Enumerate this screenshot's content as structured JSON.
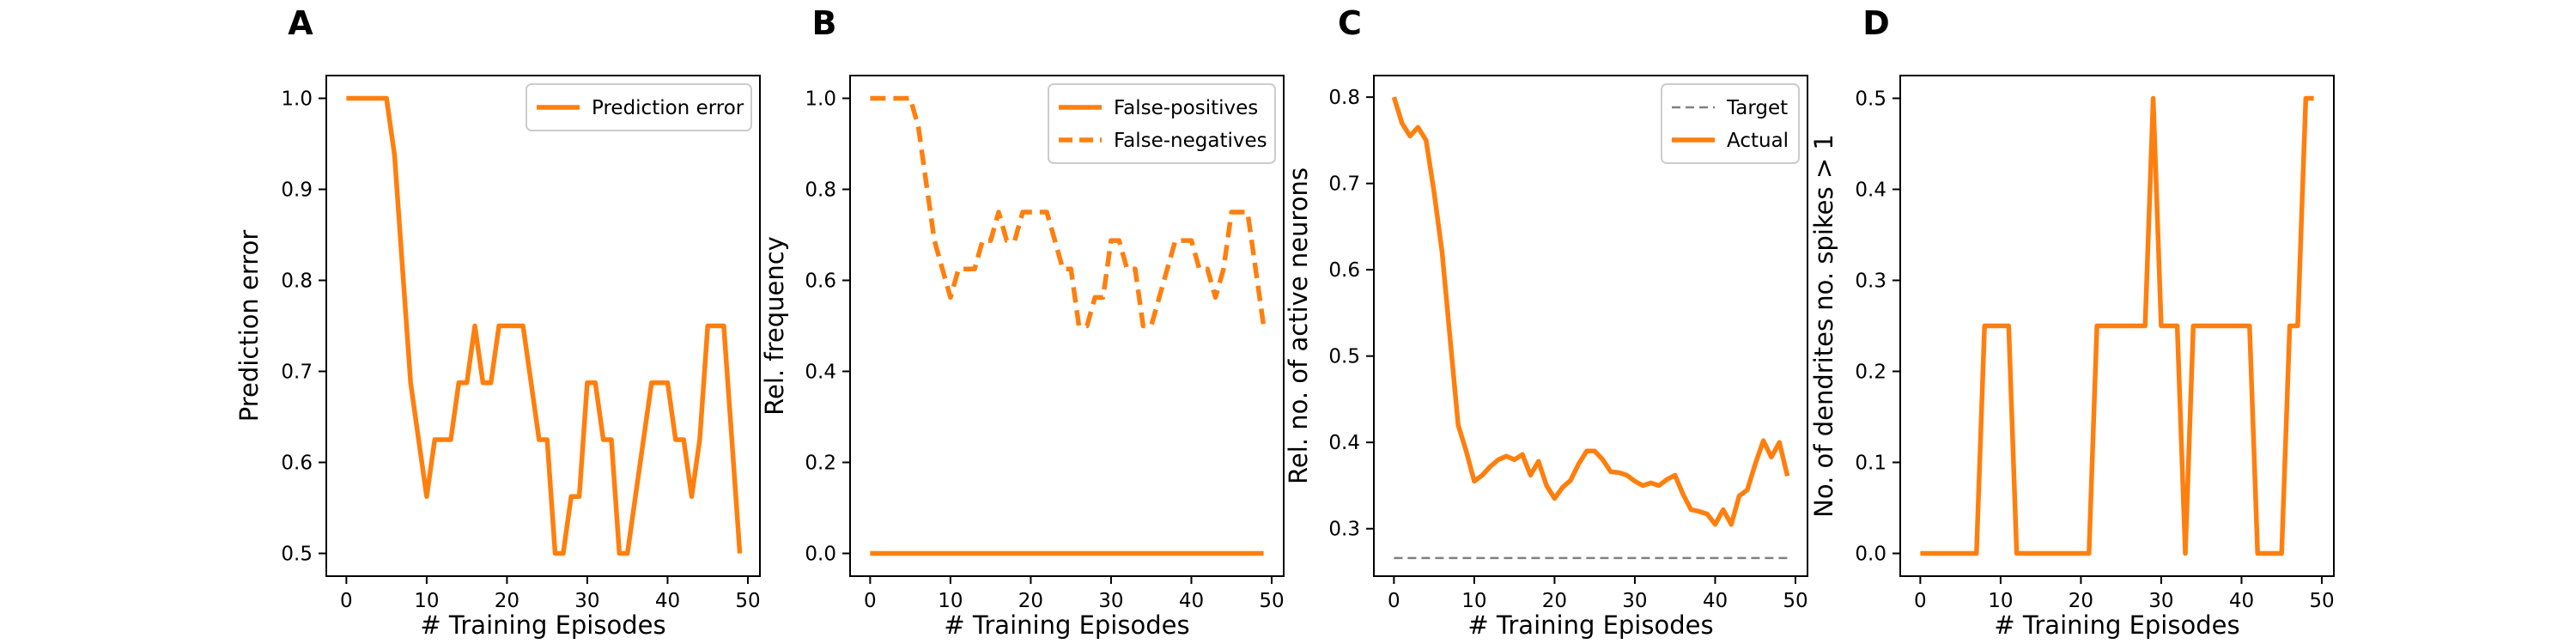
{
  "chart_data": [
    {
      "type": "line",
      "panel_label": "A",
      "xlabel": "# Training Episodes",
      "ylabel": "Prediction error",
      "xlim": [
        -2.5,
        51.5
      ],
      "ylim": [
        0.475,
        1.025
      ],
      "xticks": [
        0,
        10,
        20,
        30,
        40,
        50
      ],
      "yticks": [
        0.5,
        0.6,
        0.7,
        0.8,
        0.9,
        1.0
      ],
      "ytick_labels": [
        "0.5",
        "0.6",
        "0.7",
        "0.8",
        "0.9",
        "1.0"
      ],
      "legend": "top-right",
      "color": "#ff7f0e",
      "x": [
        0,
        1,
        2,
        3,
        4,
        5,
        6,
        7,
        8,
        9,
        10,
        11,
        12,
        13,
        14,
        15,
        16,
        17,
        18,
        19,
        20,
        21,
        22,
        23,
        24,
        25,
        26,
        27,
        28,
        29,
        30,
        31,
        32,
        33,
        34,
        35,
        36,
        37,
        38,
        39,
        40,
        41,
        42,
        43,
        44,
        45,
        46,
        47,
        48,
        49
      ],
      "series": [
        {
          "name": "Prediction error",
          "style": "solid",
          "values": [
            1.0,
            1.0,
            1.0,
            1.0,
            1.0,
            1.0,
            0.9375,
            0.8125,
            0.6875,
            0.625,
            0.5625,
            0.625,
            0.625,
            0.625,
            0.6875,
            0.6875,
            0.75,
            0.6875,
            0.6875,
            0.75,
            0.75,
            0.75,
            0.75,
            0.6875,
            0.625,
            0.625,
            0.5,
            0.5,
            0.5625,
            0.5625,
            0.6875,
            0.6875,
            0.625,
            0.625,
            0.5,
            0.5,
            0.5625,
            0.625,
            0.6875,
            0.6875,
            0.6875,
            0.625,
            0.625,
            0.5625,
            0.625,
            0.75,
            0.75,
            0.75,
            0.625,
            0.5
          ]
        }
      ]
    },
    {
      "type": "line",
      "panel_label": "B",
      "xlabel": "# Training Episodes",
      "ylabel": "Rel. frequency",
      "xlim": [
        -2.5,
        51.5
      ],
      "ylim": [
        -0.05,
        1.05
      ],
      "xticks": [
        0,
        10,
        20,
        30,
        40,
        50
      ],
      "yticks": [
        0.0,
        0.2,
        0.4,
        0.6,
        0.8,
        1.0
      ],
      "ytick_labels": [
        "0.0",
        "0.2",
        "0.4",
        "0.6",
        "0.8",
        "1.0"
      ],
      "legend": "top-right",
      "color": "#ff7f0e",
      "x": [
        0,
        1,
        2,
        3,
        4,
        5,
        6,
        7,
        8,
        9,
        10,
        11,
        12,
        13,
        14,
        15,
        16,
        17,
        18,
        19,
        20,
        21,
        22,
        23,
        24,
        25,
        26,
        27,
        28,
        29,
        30,
        31,
        32,
        33,
        34,
        35,
        36,
        37,
        38,
        39,
        40,
        41,
        42,
        43,
        44,
        45,
        46,
        47,
        48,
        49
      ],
      "series": [
        {
          "name": "False-positives",
          "style": "solid",
          "values": [
            0,
            0,
            0,
            0,
            0,
            0,
            0,
            0,
            0,
            0,
            0,
            0,
            0,
            0,
            0,
            0,
            0,
            0,
            0,
            0,
            0,
            0,
            0,
            0,
            0,
            0,
            0,
            0,
            0,
            0,
            0,
            0,
            0,
            0,
            0,
            0,
            0,
            0,
            0,
            0,
            0,
            0,
            0,
            0,
            0,
            0,
            0,
            0,
            0,
            0
          ]
        },
        {
          "name": "False-negatives",
          "style": "dashed",
          "values": [
            1.0,
            1.0,
            1.0,
            1.0,
            1.0,
            1.0,
            0.9375,
            0.8125,
            0.6875,
            0.625,
            0.5625,
            0.625,
            0.625,
            0.625,
            0.6875,
            0.6875,
            0.75,
            0.6875,
            0.6875,
            0.75,
            0.75,
            0.75,
            0.75,
            0.6875,
            0.625,
            0.625,
            0.5,
            0.5,
            0.5625,
            0.5625,
            0.6875,
            0.6875,
            0.625,
            0.625,
            0.5,
            0.5,
            0.5625,
            0.625,
            0.6875,
            0.6875,
            0.6875,
            0.625,
            0.625,
            0.5625,
            0.625,
            0.75,
            0.75,
            0.75,
            0.625,
            0.5
          ]
        }
      ]
    },
    {
      "type": "line",
      "panel_label": "C",
      "xlabel": "# Training Episodes",
      "ylabel": "Rel. no. of active neurons",
      "xlim": [
        -2.5,
        51.5
      ],
      "ylim": [
        0.245,
        0.825
      ],
      "xticks": [
        0,
        10,
        20,
        30,
        40,
        50
      ],
      "yticks": [
        0.3,
        0.4,
        0.5,
        0.6,
        0.7,
        0.8
      ],
      "ytick_labels": [
        "0.3",
        "0.4",
        "0.5",
        "0.6",
        "0.7",
        "0.8"
      ],
      "legend": "top-right",
      "color": "#ff7f0e",
      "target_color": "#808080",
      "x": [
        0,
        1,
        2,
        3,
        4,
        5,
        6,
        7,
        8,
        9,
        10,
        11,
        12,
        13,
        14,
        15,
        16,
        17,
        18,
        19,
        20,
        21,
        22,
        23,
        24,
        25,
        26,
        27,
        28,
        29,
        30,
        31,
        32,
        33,
        34,
        35,
        36,
        37,
        38,
        39,
        40,
        41,
        42,
        43,
        44,
        45,
        46,
        47,
        48,
        49
      ],
      "series": [
        {
          "name": "Target",
          "style": "dashed",
          "values": [
            0.266,
            0.266,
            0.266,
            0.266,
            0.266,
            0.266,
            0.266,
            0.266,
            0.266,
            0.266,
            0.266,
            0.266,
            0.266,
            0.266,
            0.266,
            0.266,
            0.266,
            0.266,
            0.266,
            0.266,
            0.266,
            0.266,
            0.266,
            0.266,
            0.266,
            0.266,
            0.266,
            0.266,
            0.266,
            0.266,
            0.266,
            0.266,
            0.266,
            0.266,
            0.266,
            0.266,
            0.266,
            0.266,
            0.266,
            0.266,
            0.266,
            0.266,
            0.266,
            0.266,
            0.266,
            0.266,
            0.266,
            0.266,
            0.266,
            0.266
          ]
        },
        {
          "name": "Actual",
          "style": "solid",
          "values": [
            0.8,
            0.77,
            0.755,
            0.765,
            0.75,
            0.69,
            0.62,
            0.52,
            0.42,
            0.39,
            0.355,
            0.362,
            0.372,
            0.38,
            0.384,
            0.38,
            0.386,
            0.362,
            0.378,
            0.35,
            0.335,
            0.348,
            0.356,
            0.375,
            0.39,
            0.39,
            0.38,
            0.366,
            0.365,
            0.362,
            0.355,
            0.35,
            0.353,
            0.35,
            0.357,
            0.362,
            0.34,
            0.322,
            0.32,
            0.317,
            0.305,
            0.322,
            0.305,
            0.338,
            0.345,
            0.375,
            0.402,
            0.383,
            0.4,
            0.361
          ]
        }
      ]
    },
    {
      "type": "line",
      "panel_label": "D",
      "xlabel": "# Training Episodes",
      "ylabel": "No. of dendrites no. spikes > 1",
      "xlim": [
        -2.5,
        51.5
      ],
      "ylim": [
        -0.025,
        0.525
      ],
      "xticks": [
        0,
        10,
        20,
        30,
        40,
        50
      ],
      "yticks": [
        0.0,
        0.1,
        0.2,
        0.3,
        0.4,
        0.5
      ],
      "ytick_labels": [
        "0.0",
        "0.1",
        "0.2",
        "0.3",
        "0.4",
        "0.5"
      ],
      "color": "#ff7f0e",
      "x": [
        0,
        1,
        2,
        3,
        4,
        5,
        6,
        7,
        8,
        9,
        10,
        11,
        12,
        13,
        14,
        15,
        16,
        17,
        18,
        19,
        20,
        21,
        22,
        23,
        24,
        25,
        26,
        27,
        28,
        29,
        30,
        31,
        32,
        33,
        34,
        35,
        36,
        37,
        38,
        39,
        40,
        41,
        42,
        43,
        44,
        45,
        46,
        47,
        48,
        49
      ],
      "series": [
        {
          "style": "solid",
          "values": [
            0,
            0,
            0,
            0,
            0,
            0,
            0,
            0,
            0.25,
            0.25,
            0.25,
            0.25,
            0,
            0,
            0,
            0,
            0,
            0,
            0,
            0,
            0,
            0,
            0.25,
            0.25,
            0.25,
            0.25,
            0.25,
            0.25,
            0.25,
            0.5,
            0.25,
            0.25,
            0.25,
            0,
            0.25,
            0.25,
            0.25,
            0.25,
            0.25,
            0.25,
            0.25,
            0.25,
            0,
            0,
            0,
            0,
            0.25,
            0.25,
            0.5,
            0.5
          ]
        }
      ]
    }
  ]
}
